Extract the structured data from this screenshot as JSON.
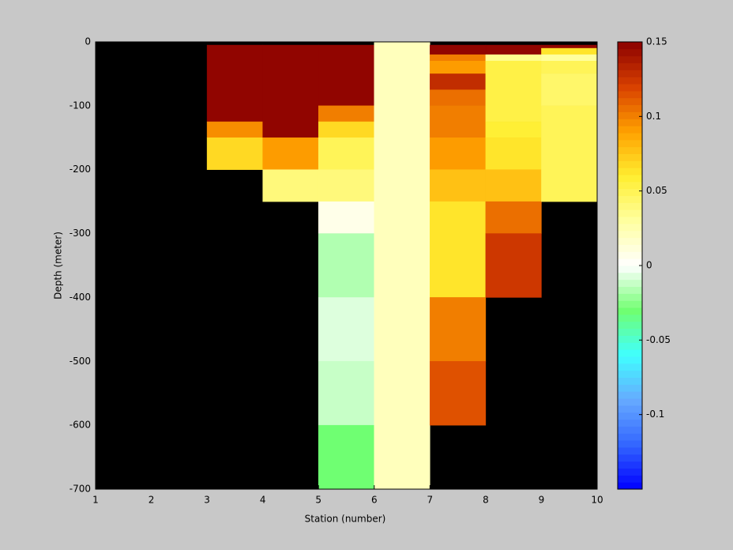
{
  "chart_data": {
    "type": "heatmap",
    "xlabel": "Station (number)",
    "ylabel": "Depth (meter)",
    "xlim": [
      1,
      10
    ],
    "xticks": [
      1,
      2,
      3,
      4,
      5,
      6,
      7,
      8,
      9,
      10
    ],
    "ylim": [
      -700,
      0
    ],
    "yticks": [
      0,
      -100,
      -200,
      -300,
      -400,
      -500,
      -600,
      -700
    ],
    "background": "#000000",
    "colorbar": {
      "lim": [
        -0.15,
        0.15
      ],
      "ticks": [
        0.15,
        0.1,
        0.05,
        0,
        -0.05,
        -0.1
      ],
      "levels": 64,
      "colormap": [
        "#0000ff",
        "#3366ff",
        "#66aaff",
        "#40ffff",
        "#70ff70",
        "#ffffff",
        "#ffffa0",
        "#ffee30",
        "#ffa000",
        "#d84000",
        "#8b0000"
      ]
    },
    "cells": [
      {
        "x": [
          3,
          4
        ],
        "y": [
          -5,
          -125
        ],
        "value": 0.15
      },
      {
        "x": [
          3,
          4
        ],
        "y": [
          -125,
          -150
        ],
        "value": 0.095
      },
      {
        "x": [
          3,
          4
        ],
        "y": [
          -150,
          -200
        ],
        "value": 0.07
      },
      {
        "x": [
          4,
          5
        ],
        "y": [
          -5,
          -150
        ],
        "value": 0.15
      },
      {
        "x": [
          4,
          5
        ],
        "y": [
          -150,
          -200
        ],
        "value": 0.09
      },
      {
        "x": [
          4,
          5
        ],
        "y": [
          -200,
          -250
        ],
        "value": 0.04
      },
      {
        "x": [
          5,
          6
        ],
        "y": [
          -5,
          -100
        ],
        "value": 0.15
      },
      {
        "x": [
          5,
          6
        ],
        "y": [
          -100,
          -125
        ],
        "value": 0.1
      },
      {
        "x": [
          5,
          6
        ],
        "y": [
          -125,
          -150
        ],
        "value": 0.07
      },
      {
        "x": [
          5,
          6
        ],
        "y": [
          -150,
          -200
        ],
        "value": 0.05
      },
      {
        "x": [
          5,
          6
        ],
        "y": [
          -200,
          -250
        ],
        "value": 0.04
      },
      {
        "x": [
          5,
          6
        ],
        "y": [
          -250,
          -300
        ],
        "value": 0.005
      },
      {
        "x": [
          5,
          6
        ],
        "y": [
          -300,
          -400
        ],
        "value": -0.015
      },
      {
        "x": [
          5,
          6
        ],
        "y": [
          -400,
          -500
        ],
        "value": -0.005
      },
      {
        "x": [
          5,
          6
        ],
        "y": [
          -500,
          -600
        ],
        "value": -0.012
      },
      {
        "x": [
          5,
          6
        ],
        "y": [
          -600,
          -700
        ],
        "value": -0.03
      },
      {
        "x": [
          6,
          7
        ],
        "y": [
          0,
          -700
        ],
        "value": 0.02
      },
      {
        "x": [
          7,
          8
        ],
        "y": [
          -5,
          -20
        ],
        "value": 0.15
      },
      {
        "x": [
          7,
          8
        ],
        "y": [
          -20,
          -30
        ],
        "value": 0.1
      },
      {
        "x": [
          7,
          8
        ],
        "y": [
          -30,
          -50
        ],
        "value": 0.09
      },
      {
        "x": [
          7,
          8
        ],
        "y": [
          -50,
          -75
        ],
        "value": 0.13
      },
      {
        "x": [
          7,
          8
        ],
        "y": [
          -75,
          -100
        ],
        "value": 0.105
      },
      {
        "x": [
          7,
          8
        ],
        "y": [
          -100,
          -150
        ],
        "value": 0.1
      },
      {
        "x": [
          7,
          8
        ],
        "y": [
          -150,
          -200
        ],
        "value": 0.09
      },
      {
        "x": [
          7,
          8
        ],
        "y": [
          -200,
          -250
        ],
        "value": 0.075
      },
      {
        "x": [
          7,
          8
        ],
        "y": [
          -250,
          -400
        ],
        "value": 0.065
      },
      {
        "x": [
          7,
          8
        ],
        "y": [
          -400,
          -500
        ],
        "value": 0.1
      },
      {
        "x": [
          7,
          8
        ],
        "y": [
          -500,
          -600
        ],
        "value": 0.115
      },
      {
        "x": [
          8,
          9
        ],
        "y": [
          -5,
          -20
        ],
        "value": 0.15
      },
      {
        "x": [
          8,
          9
        ],
        "y": [
          -20,
          -30
        ],
        "value": 0.035
      },
      {
        "x": [
          8,
          9
        ],
        "y": [
          -30,
          -125
        ],
        "value": 0.055
      },
      {
        "x": [
          8,
          9
        ],
        "y": [
          -125,
          -150
        ],
        "value": 0.058
      },
      {
        "x": [
          8,
          9
        ],
        "y": [
          -150,
          -200
        ],
        "value": 0.062
      },
      {
        "x": [
          8,
          9
        ],
        "y": [
          -200,
          -250
        ],
        "value": 0.075
      },
      {
        "x": [
          8,
          9
        ],
        "y": [
          -250,
          -300
        ],
        "value": 0.105
      },
      {
        "x": [
          8,
          9
        ],
        "y": [
          -300,
          -400
        ],
        "value": 0.125
      },
      {
        "x": [
          9,
          10
        ],
        "y": [
          -5,
          -10
        ],
        "value": 0.15
      },
      {
        "x": [
          9,
          10
        ],
        "y": [
          -10,
          -20
        ],
        "value": 0.065
      },
      {
        "x": [
          9,
          10
        ],
        "y": [
          -20,
          -30
        ],
        "value": 0.03
      },
      {
        "x": [
          9,
          10
        ],
        "y": [
          -30,
          -50
        ],
        "value": 0.05
      },
      {
        "x": [
          9,
          10
        ],
        "y": [
          -50,
          -100
        ],
        "value": 0.045
      },
      {
        "x": [
          9,
          10
        ],
        "y": [
          -100,
          -250
        ],
        "value": 0.05
      }
    ]
  }
}
